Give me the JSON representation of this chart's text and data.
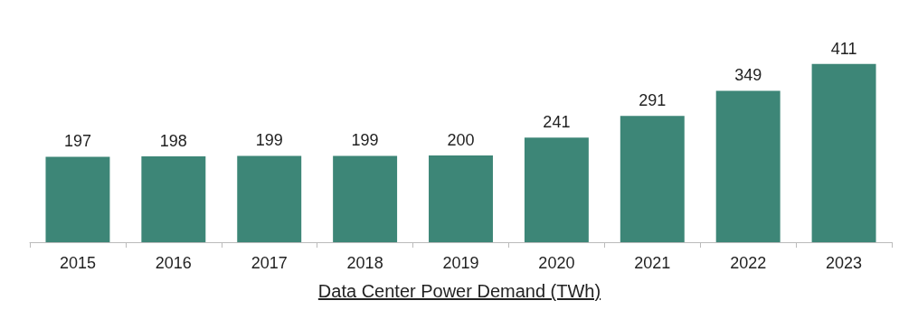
{
  "chart_data": {
    "type": "bar",
    "xlabel": "Data Center Power Demand (TWh)",
    "categories": [
      "2015",
      "2016",
      "2017",
      "2018",
      "2019",
      "2020",
      "2021",
      "2022",
      "2023"
    ],
    "values": [
      197,
      198,
      199,
      199,
      200,
      241,
      291,
      349,
      411
    ],
    "color": "#3d8677",
    "data_labels": true
  }
}
